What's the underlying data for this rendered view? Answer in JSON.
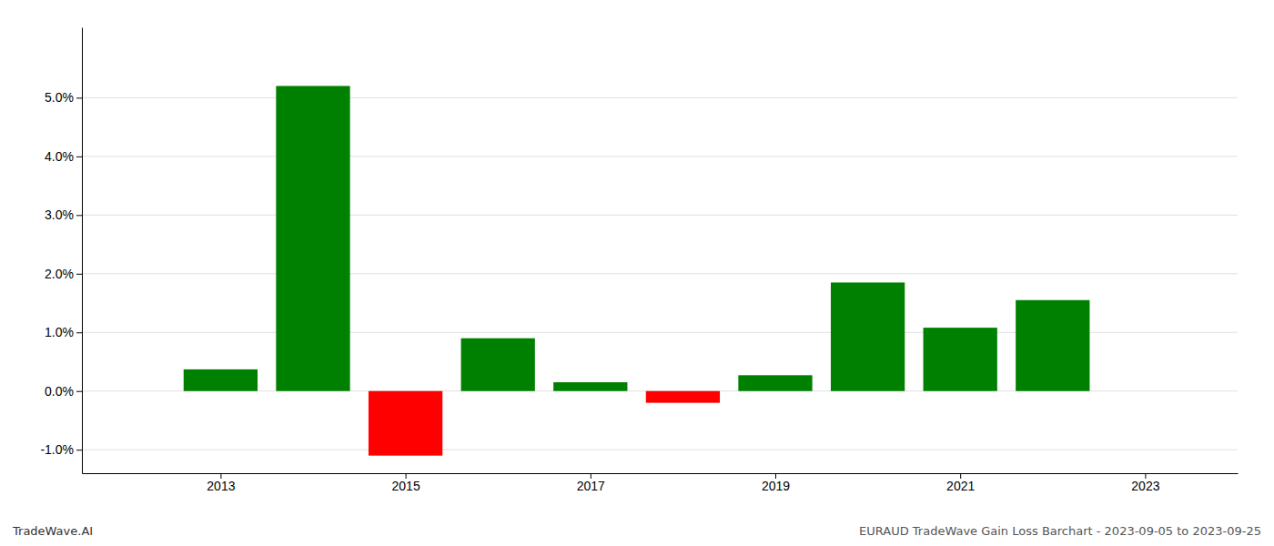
{
  "chart_data": {
    "type": "bar",
    "x": [
      2013,
      2014,
      2015,
      2016,
      2017,
      2018,
      2019,
      2020,
      2021,
      2022
    ],
    "values": [
      0.0037,
      0.052,
      -0.011,
      0.009,
      0.0015,
      -0.002,
      0.0027,
      0.0185,
      0.0108,
      0.0155
    ],
    "colors": [
      "#008000",
      "#008000",
      "#ff0000",
      "#008000",
      "#008000",
      "#ff0000",
      "#008000",
      "#008000",
      "#008000",
      "#008000"
    ],
    "xlim": [
      2011.5,
      2024.0
    ],
    "ylim": [
      -0.014,
      0.062
    ],
    "xticks": [
      2013,
      2015,
      2017,
      2019,
      2021,
      2023
    ],
    "yticks": [
      {
        "value": -0.01,
        "label": "-1.0%"
      },
      {
        "value": 0.0,
        "label": "0.0%"
      },
      {
        "value": 0.01,
        "label": "1.0%"
      },
      {
        "value": 0.02,
        "label": "2.0%"
      },
      {
        "value": 0.03,
        "label": "3.0%"
      },
      {
        "value": 0.04,
        "label": "4.0%"
      },
      {
        "value": 0.05,
        "label": "5.0%"
      }
    ],
    "grid": true,
    "annotations": [
      "TradeWave.AI",
      "EURAUD TradeWave Gain Loss Barchart - 2023-09-05 to 2023-09-25"
    ]
  }
}
